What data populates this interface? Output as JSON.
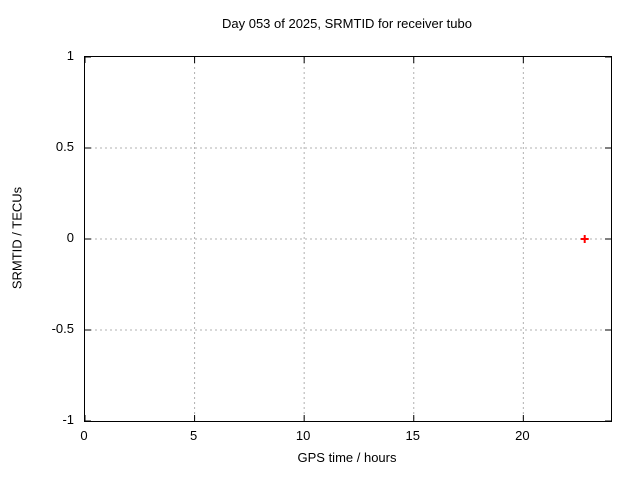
{
  "page": {
    "background": "#ffffff"
  },
  "chart_data": {
    "type": "scatter",
    "title": "Day 053 of 2025, SRMTID for receiver tubo",
    "xlabel": "GPS time / hours",
    "ylabel": "SRMTID / TECUs",
    "xlim": [
      0,
      24
    ],
    "ylim": [
      -1,
      1
    ],
    "xticks": [
      0,
      5,
      10,
      15,
      20
    ],
    "yticks": [
      -1,
      -0.5,
      0,
      0.5,
      1
    ],
    "grid": true,
    "legend_position": "none",
    "border_color": "#000000",
    "grid_color": "#b0b0b0",
    "tick_color": "#000000",
    "series": [
      {
        "name": "SRMTID",
        "marker": "plus",
        "color": "#ff0000",
        "points": [
          {
            "x": 22.8,
            "y": 0.0
          }
        ]
      }
    ]
  }
}
